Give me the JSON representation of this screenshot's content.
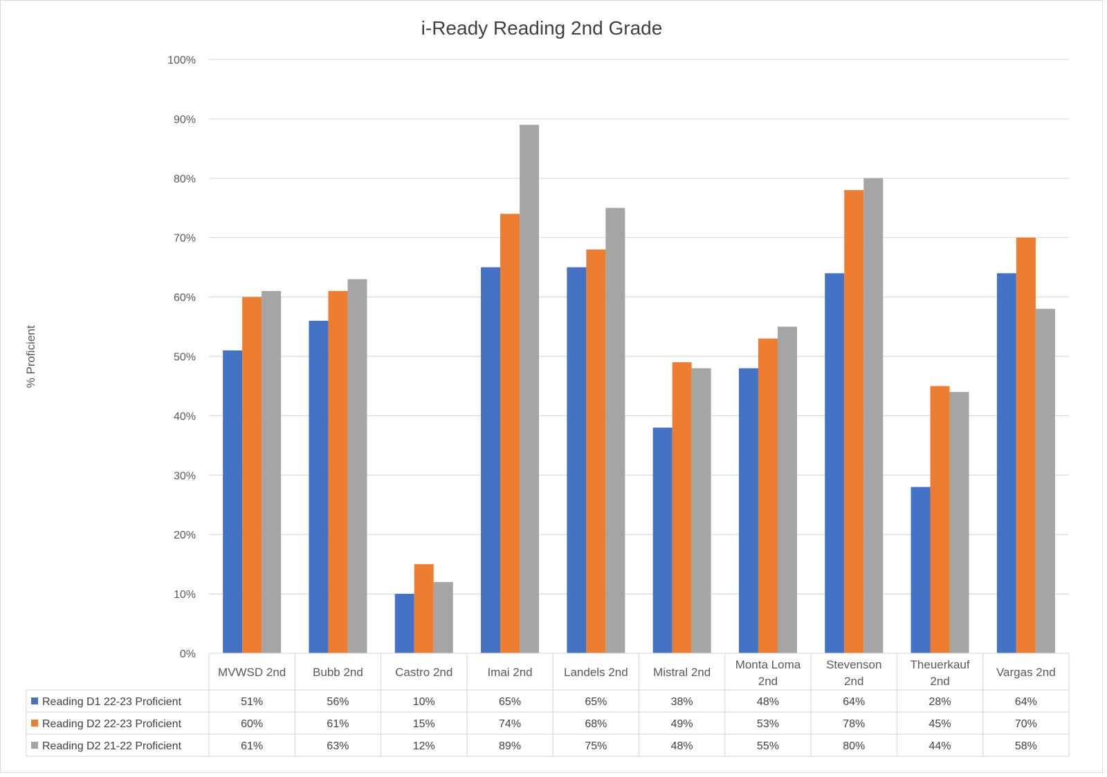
{
  "chart_data": {
    "type": "bar",
    "title": "i-Ready Reading 2nd Grade",
    "xlabel": "",
    "ylabel": "% Proficient",
    "ylim": [
      0,
      100
    ],
    "y_ticks": [
      "0%",
      "10%",
      "20%",
      "30%",
      "40%",
      "50%",
      "60%",
      "70%",
      "80%",
      "90%",
      "100%"
    ],
    "grid": true,
    "legend_placement": "data table below chart",
    "categories": [
      [
        "MVWSD 2nd"
      ],
      [
        "Bubb 2nd"
      ],
      [
        "Castro 2nd"
      ],
      [
        "Imai 2nd"
      ],
      [
        "Landels 2nd"
      ],
      [
        "Mistral 2nd"
      ],
      [
        "Monta Loma",
        "2nd"
      ],
      [
        "Stevenson",
        "2nd"
      ],
      [
        "Theuerkauf",
        "2nd"
      ],
      [
        "Vargas 2nd"
      ]
    ],
    "series": [
      {
        "name": "Reading D1 22-23 Proficient",
        "color": "#4472c4",
        "values": [
          51,
          56,
          10,
          65,
          65,
          38,
          48,
          64,
          28,
          64
        ],
        "labels": [
          "51%",
          "56%",
          "10%",
          "65%",
          "65%",
          "38%",
          "48%",
          "64%",
          "28%",
          "64%"
        ]
      },
      {
        "name": "Reading D2 22-23 Proficient",
        "color": "#ed7d31",
        "values": [
          60,
          61,
          15,
          74,
          68,
          49,
          53,
          78,
          45,
          70
        ],
        "labels": [
          "60%",
          "61%",
          "15%",
          "74%",
          "68%",
          "49%",
          "53%",
          "78%",
          "45%",
          "70%"
        ]
      },
      {
        "name": "Reading D2 21-22 Proficient",
        "color": "#a5a5a5",
        "values": [
          61,
          63,
          12,
          89,
          75,
          48,
          55,
          80,
          44,
          58
        ],
        "labels": [
          "61%",
          "63%",
          "12%",
          "89%",
          "75%",
          "48%",
          "55%",
          "80%",
          "44%",
          "58%"
        ]
      }
    ]
  }
}
